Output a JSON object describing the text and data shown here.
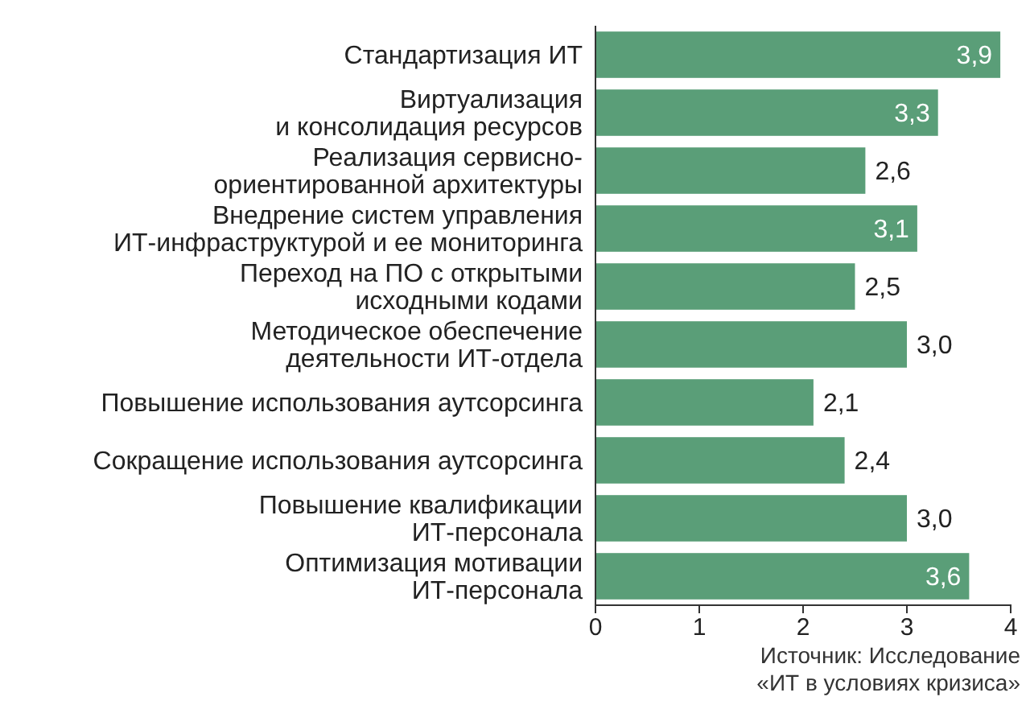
{
  "chart_data": {
    "type": "bar",
    "orientation": "horizontal",
    "categories": [
      "Стандартизация ИТ",
      "Виртуализация\nи консолидация ресурсов",
      "Реализация сервисно-\nориентированной архитектуры",
      "Внедрение систем управления\nИТ-инфраструктурой и ее мониторинга",
      "Переход на ПО с открытыми\nисходными кодами",
      "Методическое обеспечение\nдеятельности ИТ-отдела",
      "Повышение использования аутсорсинга",
      "Сокращение использования аутсорсинга",
      "Повышение квалификации\nИТ-персонала",
      "Оптимизация мотивации\nИТ-персонала"
    ],
    "values": [
      3.9,
      3.3,
      2.6,
      3.1,
      2.5,
      3.0,
      2.1,
      2.4,
      3.0,
      3.6
    ],
    "value_labels": [
      "3,9",
      "3,3",
      "2,6",
      "3,1",
      "2,5",
      "3,0",
      "2,1",
      "2,4",
      "3,0",
      "3,6"
    ],
    "color": "#5a9e78",
    "xlim": [
      0,
      4
    ],
    "xticks": [
      0,
      1,
      2,
      3,
      4
    ],
    "annotations": [
      "Источник: Исследование\n«ИТ в условиях кризиса»"
    ]
  }
}
